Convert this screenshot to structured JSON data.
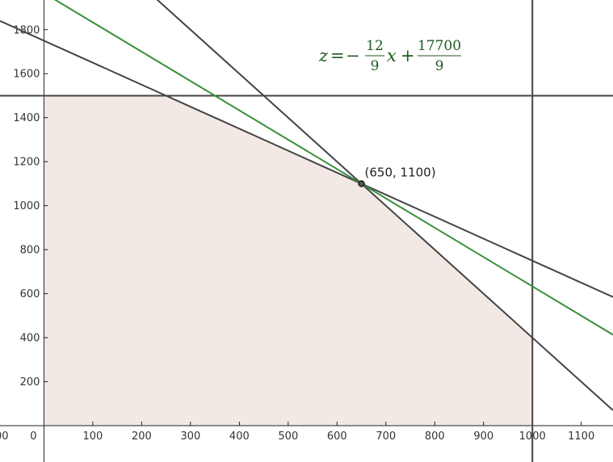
{
  "chart_data": {
    "type": "line",
    "title": "",
    "xlabel": "",
    "ylabel": "",
    "xlim": [
      -90,
      1165
    ],
    "ylim": [
      -165,
      1935
    ],
    "grid": false,
    "x_ticks": [
      0,
      100,
      200,
      300,
      400,
      500,
      600,
      700,
      800,
      900,
      1000,
      1100
    ],
    "x_tick_labels": [
      "0",
      "100",
      "200",
      "300",
      "400",
      "500",
      "600",
      "700",
      "800",
      "900",
      "1000",
      "1100"
    ],
    "offscreen_x_tick_label": "00",
    "y_ticks": [
      200,
      400,
      600,
      800,
      1000,
      1200,
      1400,
      1600,
      1800
    ],
    "y_tick_labels": [
      "200",
      "400",
      "600",
      "800",
      "1000",
      "1200",
      "1400",
      "1600",
      "1800"
    ],
    "feasible_region": {
      "vertices": [
        [
          0,
          0
        ],
        [
          0,
          1500
        ],
        [
          250,
          1500
        ],
        [
          650,
          1100
        ],
        [
          1000,
          400
        ],
        [
          1000,
          0
        ]
      ],
      "color": "#f2e8e4"
    },
    "constraint_lines": [
      {
        "kind": "line",
        "slope": -1,
        "intercept": 1750,
        "color": "#444444"
      },
      {
        "kind": "line",
        "slope": -2,
        "intercept": 2400,
        "color": "#444444"
      },
      {
        "kind": "horizontal",
        "y": 1500,
        "color": "#444444"
      },
      {
        "kind": "vertical",
        "x": 1000,
        "color": "#444444"
      }
    ],
    "objective_line": {
      "slope": -1.3333333,
      "intercept": 1966.6667,
      "color": "#3a8f3a"
    },
    "optimal_point": {
      "x": 650,
      "y": 1100,
      "label": "(650, 1100)"
    },
    "equation": {
      "lhs": "z",
      "equals": "=",
      "minus": "−",
      "coef_numerator": "12",
      "coef_denominator": "9",
      "variable": "x",
      "plus": "+",
      "const_numerator": "17700",
      "const_denominator": "9"
    }
  }
}
